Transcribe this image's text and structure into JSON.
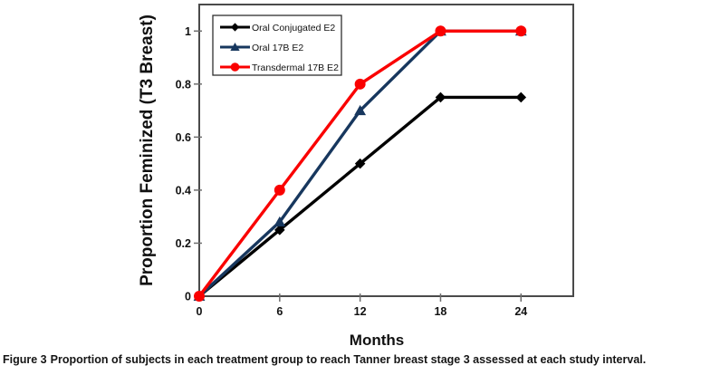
{
  "caption": {
    "label": "Figure 3",
    "text": "Proportion of subjects in each treatment group to reach Tanner breast stage 3 assessed at each study interval."
  },
  "chart_data": {
    "type": "line",
    "x": [
      0,
      6,
      12,
      18,
      24
    ],
    "xtick_labels": [
      "0",
      "6",
      "12",
      "18",
      "24"
    ],
    "yticks": [
      0,
      0.2,
      0.4,
      0.6,
      0.8,
      1
    ],
    "ytick_labels": [
      "0",
      "0.2",
      "0.4",
      "0.6",
      "0.8",
      "1"
    ],
    "xlabel": "Months",
    "ylabel": "Proportion Feminized (T3 Breast)",
    "xlim": [
      0,
      27.9
    ],
    "ylim": [
      0,
      1.1
    ],
    "grid": false,
    "legend_position": "top-left",
    "series": [
      {
        "name": "Oral Conjugated E2",
        "color": "#000000",
        "marker": "diamond",
        "values": [
          0,
          0.25,
          0.5,
          0.75,
          0.75
        ]
      },
      {
        "name": "Oral 17B E2",
        "color": "#17375E",
        "marker": "triangle",
        "values": [
          0,
          0.28,
          0.7,
          1,
          1
        ]
      },
      {
        "name": "Transdermal 17B E2",
        "color": "#FA0000",
        "marker": "circle",
        "values": [
          0,
          0.4,
          0.8,
          1,
          1
        ]
      }
    ]
  }
}
